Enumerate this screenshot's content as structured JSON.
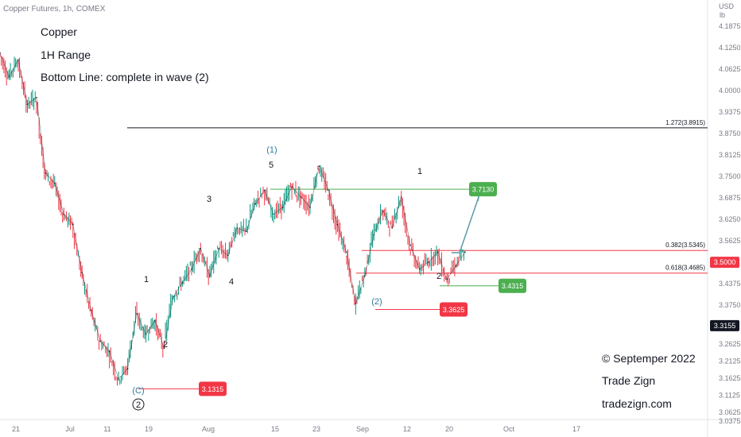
{
  "header": {
    "symbol_label": "Copper Futures, 1h, COMEX"
  },
  "annotations": {
    "line1": "Copper",
    "line2": "1H Range",
    "line3": "Bottom Line: complete in wave (2)",
    "copyright": "© Septemper 2022",
    "brand": "Trade Zign",
    "site": "tradezign.com"
  },
  "chart_data": {
    "type": "line",
    "title": "Copper Futures, 1h, COMEX",
    "price_unit": [
      "USD",
      "lb"
    ],
    "ylim": [
      3.03,
      4.2
    ],
    "x_tick_labels": [
      "21",
      "Jul",
      "11",
      "19",
      "Aug",
      "15",
      "23",
      "Sep",
      "12",
      "20",
      "Oct",
      "17"
    ],
    "y_tick_labels": [
      "4.1875",
      "4.1250",
      "4.0625",
      "4.0000",
      "3.9375",
      "3.8750",
      "3.8125",
      "3.7500",
      "3.6875",
      "3.6250",
      "3.5625",
      "3.4375",
      "3.3750",
      "3.2625",
      "3.2125",
      "3.1625",
      "3.1125",
      "3.0625",
      "3.0375"
    ],
    "series": [
      {
        "values": [
          4.11,
          4.04,
          4.09,
          3.96,
          3.98,
          3.76,
          3.73,
          3.64,
          3.61,
          3.47,
          3.36,
          3.27,
          3.24,
          3.16,
          3.19,
          3.35,
          3.29,
          3.33,
          3.25,
          3.4,
          3.44,
          3.48,
          3.54,
          3.46,
          3.54,
          3.52,
          3.6,
          3.59,
          3.67,
          3.71,
          3.64,
          3.66,
          3.72,
          3.69,
          3.66,
          3.78,
          3.71,
          3.61,
          3.53,
          3.38,
          3.46,
          3.58,
          3.65,
          3.6,
          3.69,
          3.55,
          3.48,
          3.5,
          3.53,
          3.45,
          3.49,
          3.53
        ]
      }
    ],
    "wave_labels": [
      "(1)",
      "5",
      "1",
      "3",
      "4",
      "1",
      "2",
      "2",
      "(2)",
      "(C)",
      "2"
    ],
    "horizontal_levels": [
      {
        "label": "1.272(3.8915)",
        "value": 3.8915
      },
      {
        "label": "0.382(3.5345)",
        "value": 3.5345
      },
      {
        "label": "0.618(3.4685)",
        "value": 3.4685
      }
    ],
    "price_tags": [
      {
        "label": "3.7130",
        "value": 3.713,
        "color": "#4caf50"
      },
      {
        "label": "3.4315",
        "value": 3.4315,
        "color": "#4caf50"
      },
      {
        "label": "3.3625",
        "value": 3.3625,
        "color": "#f23645"
      },
      {
        "label": "3.1315",
        "value": 3.1315,
        "color": "#f23645"
      }
    ],
    "axis_tags": [
      {
        "label": "3.5000",
        "value": 3.5,
        "color": "#f23645"
      },
      {
        "label": "3.3155",
        "value": 3.3155,
        "color": "#131722"
      }
    ],
    "grid": false
  }
}
